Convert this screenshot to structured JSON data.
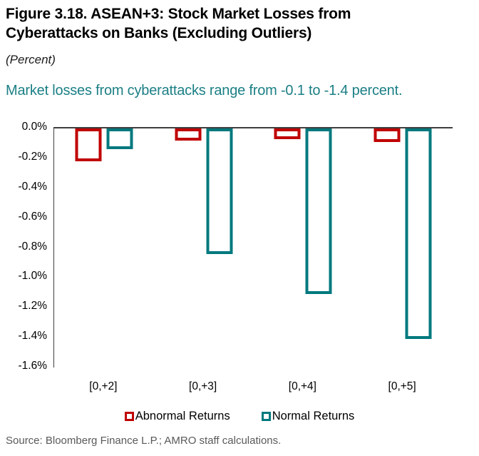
{
  "figure": {
    "title_line1": "Figure 3.18. ASEAN+3: Stock Market Losses from",
    "title_line2": "Cyberattacks on Banks (Excluding Outliers)",
    "unit_label": "(Percent)",
    "key_message": "Market losses from cyberattacks range from -0.1 to -1.4 percent.",
    "source": "Source: Bloomberg Finance L.P.; AMRO staff calculations."
  },
  "colors": {
    "abnormal_returns": "#C00000",
    "normal_returns": "#00797E",
    "key_message_text": "#1B7F85",
    "axis_line": "#3F3F3F",
    "source_text": "#595959"
  },
  "chart_data": {
    "type": "bar",
    "title": "ASEAN+3: Stock Market Losses from Cyberattacks on Banks (Excluding Outliers)",
    "xlabel": "",
    "ylabel": "Percent",
    "categories": [
      "[0,+2]",
      "[0,+3]",
      "[0,+4]",
      "[0,+5]"
    ],
    "series": [
      {
        "name": "Abnormal Returns",
        "color": "#C00000",
        "values": [
          -0.22,
          -0.08,
          -0.07,
          -0.09
        ]
      },
      {
        "name": "Normal Returns",
        "color": "#00797E",
        "values": [
          -0.14,
          -0.84,
          -1.11,
          -1.41
        ]
      }
    ],
    "ylim": [
      -1.6,
      0.0
    ],
    "ytick_step": 0.2,
    "ytick_labels": [
      "0.0%",
      "-0.2%",
      "-0.4%",
      "-0.6%",
      "-0.8%",
      "-1.0%",
      "-1.2%",
      "-1.4%",
      "-1.6%"
    ],
    "bar_style": "outlined-hollow",
    "grid": "off",
    "legend_position": "bottom"
  }
}
